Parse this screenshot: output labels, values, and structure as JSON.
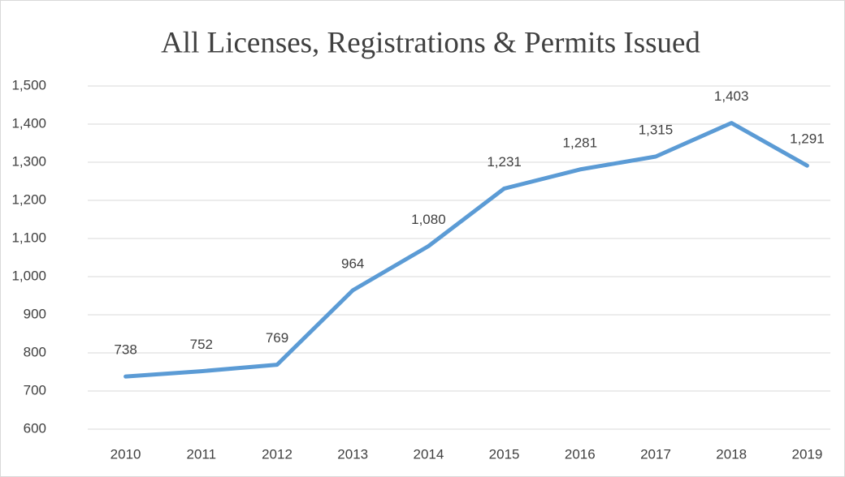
{
  "chart_data": {
    "type": "line",
    "title": "All Licenses, Registrations & Permits Issued",
    "categories": [
      "2010",
      "2011",
      "2012",
      "2013",
      "2014",
      "2015",
      "2016",
      "2017",
      "2018",
      "2019"
    ],
    "values": [
      738,
      752,
      769,
      964,
      1080,
      1231,
      1281,
      1315,
      1403,
      1291
    ],
    "value_labels": [
      "738",
      "752",
      "769",
      "964",
      "1,080",
      "1,231",
      "1,281",
      "1,315",
      "1,403",
      "1,291"
    ],
    "color": "#5b9bd5",
    "ylim": [
      600,
      1500
    ],
    "yticks": [
      600,
      700,
      800,
      900,
      {
        "value": 1000,
        "label": "1,000"
      },
      {
        "value": 1100,
        "label": "1,100"
      },
      {
        "value": 1200,
        "label": "1,200"
      },
      {
        "value": 1300,
        "label": "1,300"
      },
      {
        "value": 1400,
        "label": "1,400"
      },
      {
        "value": 1500,
        "label": "1,500"
      }
    ],
    "grid": true
  }
}
